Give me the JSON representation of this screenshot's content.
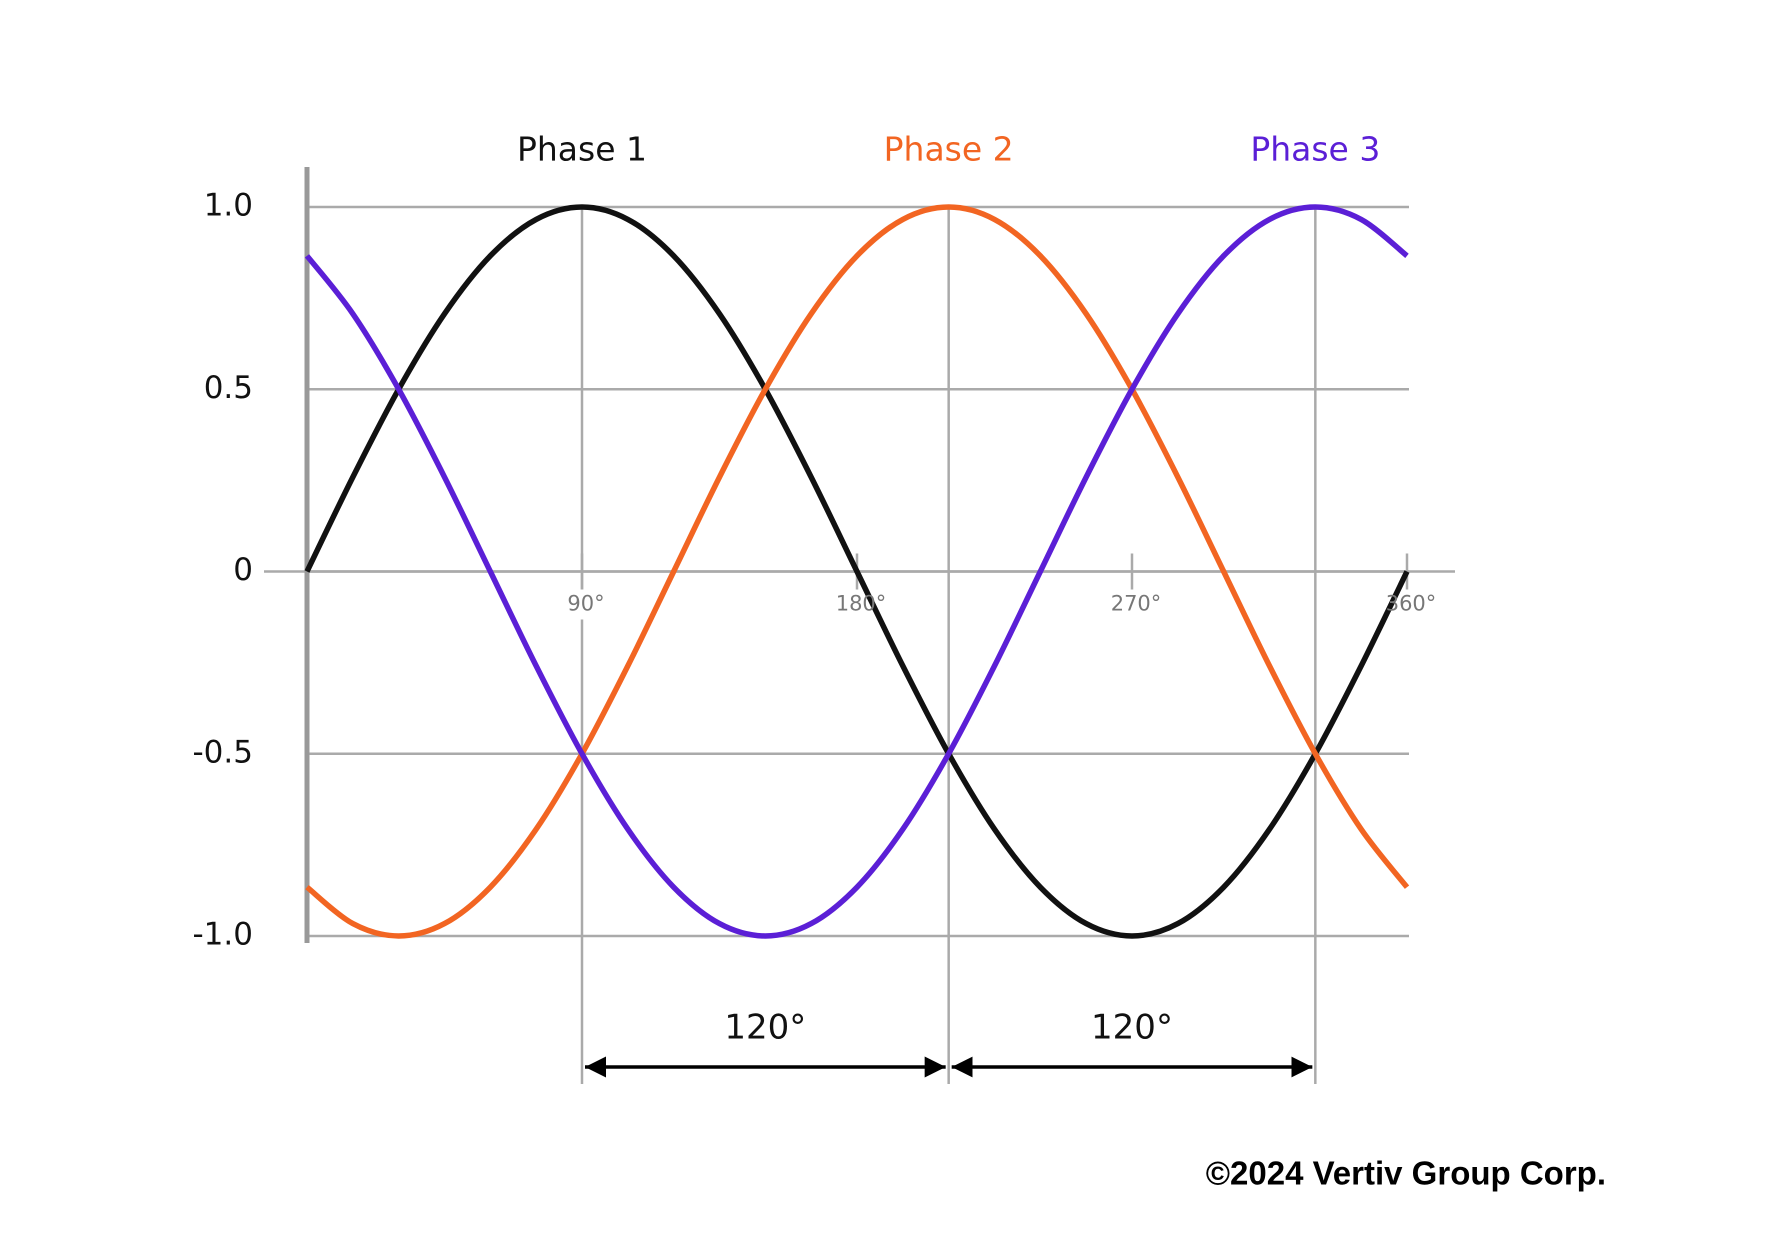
{
  "chart_data": {
    "type": "line",
    "x": [
      0,
      15,
      30,
      45,
      60,
      75,
      90,
      105,
      120,
      135,
      150,
      165,
      180,
      195,
      210,
      225,
      240,
      255,
      270,
      285,
      300,
      315,
      330,
      345,
      360
    ],
    "series": [
      {
        "name": "Phase 1",
        "color": "#111111",
        "values": [
          0,
          0.259,
          0.5,
          0.707,
          0.866,
          0.966,
          1,
          0.966,
          0.866,
          0.707,
          0.5,
          0.259,
          0,
          -0.259,
          -0.5,
          -0.707,
          -0.866,
          -0.966,
          -1,
          -0.966,
          -0.866,
          -0.707,
          -0.5,
          -0.259,
          0
        ]
      },
      {
        "name": "Phase 2",
        "color": "#f26522",
        "values": [
          -0.866,
          -0.966,
          -1,
          -0.966,
          -0.866,
          -0.707,
          -0.5,
          -0.259,
          0,
          0.259,
          0.5,
          0.707,
          0.866,
          0.966,
          1,
          0.966,
          0.866,
          0.707,
          0.5,
          0.259,
          0,
          -0.259,
          -0.5,
          -0.707,
          -0.866
        ]
      },
      {
        "name": "Phase 3",
        "color": "#5b1fd6",
        "values": [
          0.866,
          0.707,
          0.5,
          0.259,
          0,
          -0.259,
          -0.5,
          -0.707,
          -0.866,
          -0.966,
          -1,
          -0.966,
          -0.866,
          -0.707,
          -0.5,
          -0.259,
          0,
          0.259,
          0.5,
          0.707,
          0.866,
          0.966,
          1,
          0.966,
          0.866
        ]
      }
    ],
    "xlim": [
      0,
      360
    ],
    "xticks": [
      {
        "value": 90,
        "label": "90°"
      },
      {
        "value": 180,
        "label": "180°"
      },
      {
        "value": 270,
        "label": "270°"
      },
      {
        "value": 360,
        "label": "360°"
      }
    ],
    "ylim": [
      -1,
      1
    ],
    "yticks": [
      {
        "value": 1,
        "label": "1.0"
      },
      0.5,
      0,
      -0.5,
      {
        "value": -1,
        "label": "-1.0"
      }
    ],
    "grid": true,
    "x_guides": [
      90,
      210,
      330
    ],
    "annotations": [
      {
        "text": "120°",
        "x0": 90,
        "x1": 210
      },
      {
        "text": "120°",
        "x0": 210,
        "x1": 330
      }
    ],
    "credit": "©2024 Vertiv Group Corp."
  }
}
